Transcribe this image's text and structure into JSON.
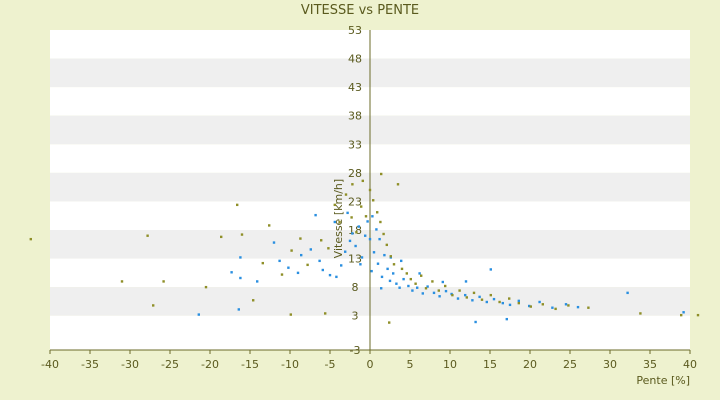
{
  "chart_data": {
    "type": "scatter",
    "title": "VITESSE vs PENTE",
    "xlabel": "Pente [%]",
    "ylabel": "Vitesse [km/h]",
    "xlim": [
      -40,
      40
    ],
    "ylim": [
      -3,
      53
    ],
    "x_ticks": [
      "-40",
      "-35",
      "-30",
      "-25",
      "-20",
      "-15",
      "-10",
      "-5",
      "0",
      "5",
      "10",
      "15",
      "20",
      "25",
      "30",
      "35",
      "40"
    ],
    "y_ticks": [
      "53",
      "48",
      "43",
      "38",
      "33",
      "28",
      "23",
      "18",
      "13",
      "8",
      "3",
      "-3"
    ],
    "grid": "horizontal banded",
    "colors": {
      "background": "#eef2cf",
      "plot_band_light": "#ffffff",
      "plot_band_dark": "#efefef",
      "series_a": "#2a8fe0",
      "series_b": "#8f8f28",
      "axis": "#6b6b2a",
      "text": "#5a5a1e"
    },
    "series": [
      {
        "color": "#2a8fe0",
        "points": [
          [
            -16.4,
            4.1
          ],
          [
            -16.2,
            9.6
          ],
          [
            -16.2,
            13.2
          ],
          [
            -12.0,
            15.8
          ],
          [
            -10.2,
            11.4
          ],
          [
            -8.6,
            13.6
          ],
          [
            -7.4,
            14.6
          ],
          [
            -6.3,
            12.6
          ],
          [
            -5.9,
            11.0
          ],
          [
            -5.0,
            10.1
          ],
          [
            -4.2,
            9.8
          ],
          [
            -3.6,
            11.8
          ],
          [
            -3.1,
            14.2
          ],
          [
            -2.5,
            16.1
          ],
          [
            -2.2,
            17.4
          ],
          [
            -1.8,
            15.2
          ],
          [
            -1.4,
            18.6
          ],
          [
            -1.0,
            13.2
          ],
          [
            -0.6,
            17.0
          ],
          [
            -0.3,
            19.5
          ],
          [
            0.0,
            16.4
          ],
          [
            0.3,
            20.4
          ],
          [
            0.5,
            14.1
          ],
          [
            0.8,
            18.1
          ],
          [
            1.0,
            12.1
          ],
          [
            1.2,
            16.4
          ],
          [
            1.5,
            9.8
          ],
          [
            1.8,
            13.6
          ],
          [
            2.2,
            11.2
          ],
          [
            2.5,
            9.1
          ],
          [
            2.9,
            10.4
          ],
          [
            3.3,
            8.6
          ],
          [
            3.7,
            7.9
          ],
          [
            4.2,
            9.4
          ],
          [
            4.8,
            8.2
          ],
          [
            5.3,
            7.4
          ],
          [
            5.9,
            7.9
          ],
          [
            6.6,
            6.9
          ],
          [
            7.2,
            8.1
          ],
          [
            8.0,
            7.0
          ],
          [
            8.7,
            6.4
          ],
          [
            9.5,
            7.3
          ],
          [
            10.2,
            6.8
          ],
          [
            11.0,
            6.0
          ],
          [
            11.9,
            6.6
          ],
          [
            12.8,
            5.7
          ],
          [
            13.7,
            6.3
          ],
          [
            14.6,
            5.4
          ],
          [
            15.5,
            5.9
          ],
          [
            16.6,
            5.2
          ],
          [
            17.5,
            4.9
          ],
          [
            18.6,
            5.6
          ],
          [
            19.9,
            4.7
          ],
          [
            21.2,
            5.4
          ],
          [
            22.8,
            4.4
          ],
          [
            24.5,
            5.0
          ],
          [
            26.0,
            4.5
          ],
          [
            32.2,
            7.0
          ],
          [
            39.2,
            3.6
          ],
          [
            -21.4,
            3.2
          ],
          [
            -17.3,
            10.6
          ],
          [
            -14.1,
            9.0
          ],
          [
            -11.3,
            12.6
          ],
          [
            -9.0,
            10.5
          ],
          [
            -6.8,
            20.6
          ],
          [
            -4.4,
            19.4
          ],
          [
            -2.8,
            21.0
          ],
          [
            -1.2,
            12.0
          ],
          [
            0.2,
            10.8
          ],
          [
            1.4,
            7.8
          ],
          [
            2.6,
            13.2
          ],
          [
            3.9,
            12.6
          ],
          [
            6.2,
            10.4
          ],
          [
            9.1,
            8.9
          ],
          [
            13.2,
            1.9
          ],
          [
            17.1,
            2.4
          ],
          [
            15.1,
            11.1
          ],
          [
            12.0,
            9.0
          ]
        ]
      },
      {
        "color": "#8f8f28",
        "points": [
          [
            -42.4,
            16.4
          ],
          [
            -31.0,
            9.0
          ],
          [
            -27.8,
            17.0
          ],
          [
            -27.1,
            4.8
          ],
          [
            -25.8,
            9.0
          ],
          [
            -18.6,
            16.8
          ],
          [
            -16.6,
            22.4
          ],
          [
            -16.0,
            17.2
          ],
          [
            -13.4,
            12.2
          ],
          [
            -12.6,
            18.8
          ],
          [
            -11.0,
            10.2
          ],
          [
            -9.8,
            14.4
          ],
          [
            -8.7,
            16.5
          ],
          [
            -7.8,
            11.9
          ],
          [
            -6.1,
            16.2
          ],
          [
            -5.2,
            14.8
          ],
          [
            -4.4,
            22.4
          ],
          [
            -3.8,
            19.4
          ],
          [
            -3.0,
            24.2
          ],
          [
            -2.3,
            20.2
          ],
          [
            -1.7,
            17.6
          ],
          [
            -1.1,
            22.1
          ],
          [
            -0.5,
            20.4
          ],
          [
            0.0,
            25.0
          ],
          [
            0.4,
            23.2
          ],
          [
            0.9,
            21.1
          ],
          [
            1.3,
            19.4
          ],
          [
            1.7,
            17.3
          ],
          [
            2.1,
            15.4
          ],
          [
            2.6,
            13.4
          ],
          [
            3.0,
            12.0
          ],
          [
            3.5,
            26.0
          ],
          [
            4.0,
            11.2
          ],
          [
            4.6,
            10.4
          ],
          [
            5.1,
            9.4
          ],
          [
            5.7,
            8.6
          ],
          [
            6.4,
            10.0
          ],
          [
            7.0,
            7.8
          ],
          [
            7.8,
            9.0
          ],
          [
            8.6,
            7.4
          ],
          [
            9.4,
            8.2
          ],
          [
            10.3,
            6.6
          ],
          [
            11.2,
            7.4
          ],
          [
            12.1,
            6.2
          ],
          [
            13.0,
            7.0
          ],
          [
            14.0,
            5.8
          ],
          [
            15.1,
            6.6
          ],
          [
            16.2,
            5.4
          ],
          [
            17.4,
            6.0
          ],
          [
            18.6,
            5.2
          ],
          [
            20.1,
            4.6
          ],
          [
            21.6,
            5.0
          ],
          [
            23.2,
            4.2
          ],
          [
            24.8,
            4.8
          ],
          [
            27.3,
            4.4
          ],
          [
            33.8,
            3.4
          ],
          [
            38.9,
            3.1
          ],
          [
            41.0,
            3.1
          ],
          [
            -5.6,
            3.4
          ],
          [
            -9.9,
            3.2
          ],
          [
            1.4,
            27.8
          ],
          [
            -0.9,
            26.6
          ],
          [
            2.4,
            1.8
          ],
          [
            -2.2,
            26.0
          ],
          [
            -14.6,
            5.7
          ],
          [
            -20.5,
            8.0
          ]
        ]
      }
    ]
  }
}
